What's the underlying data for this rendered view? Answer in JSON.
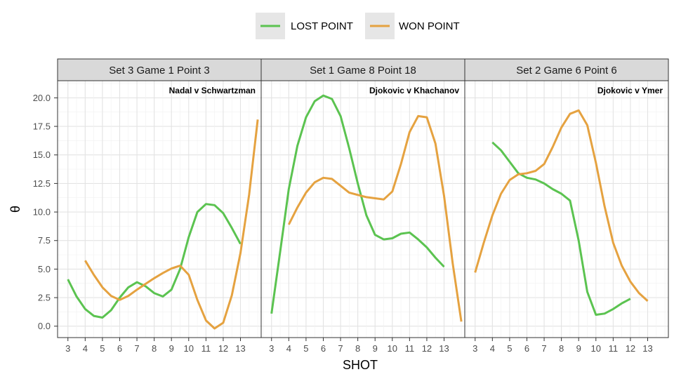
{
  "chart_data": {
    "type": "line",
    "xlabel": "SHOT",
    "ylabel": "θ",
    "ylim": [
      -1,
      21.5
    ],
    "y_ticks": [
      "0.0",
      "2.5",
      "5.0",
      "7.5",
      "10.0",
      "12.5",
      "15.0",
      "17.5",
      "20.0"
    ],
    "x_ticks": [
      "3",
      "4",
      "5",
      "6",
      "7",
      "8",
      "9",
      "10",
      "11",
      "12",
      "13"
    ],
    "xlim": [
      2.4,
      14.2
    ],
    "grid": true,
    "legend": {
      "position": "top",
      "entries": [
        {
          "label": "LOST POINT",
          "color": "#5BC350"
        },
        {
          "label": "WON POINT",
          "color": "#E5A240"
        }
      ]
    },
    "panels": [
      {
        "strip": "Set 3 Game 1 Point 3",
        "annotation": "Nadal v Schwartzman",
        "series": [
          {
            "name": "LOST POINT",
            "points": [
              [
                3,
                4.1
              ],
              [
                3.5,
                2.6
              ],
              [
                4,
                1.5
              ],
              [
                4.5,
                0.9
              ],
              [
                5,
                0.75
              ],
              [
                5.5,
                1.4
              ],
              [
                6,
                2.5
              ],
              [
                6.5,
                3.4
              ],
              [
                7,
                3.85
              ],
              [
                7.5,
                3.5
              ],
              [
                8,
                2.9
              ],
              [
                8.5,
                2.6
              ],
              [
                9,
                3.2
              ],
              [
                9.5,
                5.0
              ],
              [
                10,
                7.8
              ],
              [
                10.5,
                10.0
              ],
              [
                11,
                10.7
              ],
              [
                11.5,
                10.6
              ],
              [
                12,
                9.9
              ],
              [
                12.5,
                8.6
              ],
              [
                13,
                7.2
              ]
            ]
          },
          {
            "name": "WON POINT",
            "points": [
              [
                4,
                5.75
              ],
              [
                4.5,
                4.5
              ],
              [
                5,
                3.4
              ],
              [
                5.5,
                2.65
              ],
              [
                6,
                2.3
              ],
              [
                6.5,
                2.65
              ],
              [
                7,
                3.2
              ],
              [
                7.5,
                3.7
              ],
              [
                8,
                4.2
              ],
              [
                8.5,
                4.65
              ],
              [
                9,
                5.05
              ],
              [
                9.5,
                5.3
              ],
              [
                10,
                4.5
              ],
              [
                10.5,
                2.3
              ],
              [
                11,
                0.5
              ],
              [
                11.5,
                -0.2
              ],
              [
                12,
                0.3
              ],
              [
                12.5,
                2.7
              ],
              [
                13,
                6.4
              ],
              [
                13.5,
                11.5
              ],
              [
                14,
                18.1
              ]
            ]
          }
        ]
      },
      {
        "strip": "Set 1 Game 8 Point 18",
        "annotation": "Djokovic v Khachanov",
        "series": [
          {
            "name": "LOST POINT",
            "points": [
              [
                3,
                1.1
              ],
              [
                3.5,
                6.5
              ],
              [
                4,
                12.0
              ],
              [
                4.5,
                15.8
              ],
              [
                5,
                18.3
              ],
              [
                5.5,
                19.7
              ],
              [
                6,
                20.2
              ],
              [
                6.5,
                19.9
              ],
              [
                7,
                18.4
              ],
              [
                7.5,
                15.6
              ],
              [
                8,
                12.5
              ],
              [
                8.5,
                9.7
              ],
              [
                9,
                8.0
              ],
              [
                9.5,
                7.6
              ],
              [
                10,
                7.7
              ],
              [
                10.5,
                8.1
              ],
              [
                11,
                8.2
              ],
              [
                11.5,
                7.6
              ],
              [
                12,
                6.9
              ],
              [
                12.5,
                6.0
              ],
              [
                13,
                5.2
              ]
            ]
          },
          {
            "name": "WON POINT",
            "points": [
              [
                4,
                8.9
              ],
              [
                4.5,
                10.4
              ],
              [
                5,
                11.7
              ],
              [
                5.5,
                12.6
              ],
              [
                6,
                13.0
              ],
              [
                6.5,
                12.9
              ],
              [
                7,
                12.3
              ],
              [
                7.5,
                11.7
              ],
              [
                8,
                11.5
              ],
              [
                8.5,
                11.3
              ],
              [
                9,
                11.2
              ],
              [
                9.5,
                11.1
              ],
              [
                10,
                11.8
              ],
              [
                10.5,
                14.2
              ],
              [
                11,
                17.0
              ],
              [
                11.5,
                18.4
              ],
              [
                12,
                18.3
              ],
              [
                12.5,
                16.0
              ],
              [
                13,
                11.4
              ],
              [
                13.5,
                5.5
              ],
              [
                14,
                0.4
              ]
            ]
          }
        ]
      },
      {
        "strip": "Set 2 Game 6 Point 6",
        "annotation": "Djokovic v Ymer",
        "series": [
          {
            "name": "LOST POINT",
            "points": [
              [
                4,
                16.1
              ],
              [
                4.5,
                15.4
              ],
              [
                5,
                14.4
              ],
              [
                5.5,
                13.4
              ],
              [
                6,
                13.0
              ],
              [
                6.5,
                12.85
              ],
              [
                7,
                12.5
              ],
              [
                7.5,
                12.0
              ],
              [
                8,
                11.6
              ],
              [
                8.5,
                11.0
              ],
              [
                9,
                7.5
              ],
              [
                9.5,
                3.0
              ],
              [
                10,
                1.0
              ],
              [
                10.5,
                1.1
              ],
              [
                11,
                1.5
              ],
              [
                11.5,
                2.0
              ],
              [
                12,
                2.4
              ]
            ]
          },
          {
            "name": "WON POINT",
            "points": [
              [
                3,
                4.7
              ],
              [
                3.5,
                7.3
              ],
              [
                4,
                9.7
              ],
              [
                4.5,
                11.6
              ],
              [
                5,
                12.8
              ],
              [
                5.5,
                13.3
              ],
              [
                6,
                13.4
              ],
              [
                6.5,
                13.6
              ],
              [
                7,
                14.2
              ],
              [
                7.5,
                15.7
              ],
              [
                8,
                17.4
              ],
              [
                8.5,
                18.6
              ],
              [
                9,
                18.9
              ],
              [
                9.5,
                17.6
              ],
              [
                10,
                14.3
              ],
              [
                10.5,
                10.5
              ],
              [
                11,
                7.3
              ],
              [
                11.5,
                5.3
              ],
              [
                12,
                3.9
              ],
              [
                12.5,
                2.9
              ],
              [
                13,
                2.2
              ]
            ]
          }
        ]
      }
    ]
  }
}
